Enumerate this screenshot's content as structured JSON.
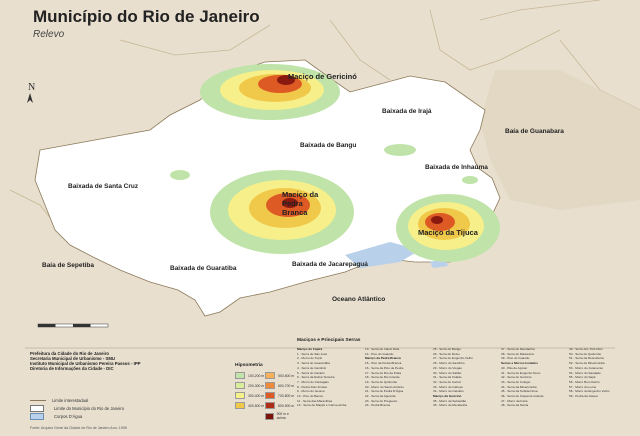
{
  "header": {
    "title": "Município do Rio de Janeiro",
    "subtitle": "Relevo",
    "north_label": "N"
  },
  "map": {
    "colors": {
      "background": "#e8dfcf",
      "land": "#ffffff",
      "water": "#b9d0ea",
      "boundary": "#8c7a5a",
      "low": "#bfe3a8",
      "mid": "#f1c94a",
      "high": "#d24a1c",
      "peak": "#8a1a10"
    },
    "labels": {
      "macico_gericino": "Maciço de Gericinó",
      "baixada_iraja": "Baixada de Irajá",
      "baia_guanabara": "Baía de Guanabara",
      "baixada_bangu": "Baixada de Bangu",
      "baixada_inhauma": "Baixada de Inhaúma",
      "baixada_santa_cruz": "Baixada de Santa Cruz",
      "macico_pedra_branca": "Maciço da Pedra Branca",
      "macico_tijuca": "Maciço da Tijuca",
      "baia_sepetiba": "Baía de Sepetiba",
      "baixada_guaratiba": "Baixada de Guaratiba",
      "baixada_jacarepagua": "Baixada de Jacarepaguá",
      "oceano": "Oceano Atlântico"
    }
  },
  "legend": {
    "institution": [
      "Prefeitura da Cidade do Rio de Janeiro",
      "Secretaria Municipal de Urbanismo - SMU",
      "Instituto Municipal de Urbanismo Pereira Passos - IPP",
      "Diretoria de Informações da Cidade - DIC"
    ],
    "lines": {
      "state_limit": "Limite interestadual",
      "municipal_limit": "Limite do Município do Rio de Janeiro",
      "water": "Corpos D'Água"
    },
    "credit": "Fonte: Arquivo Geral da Cidade do Rio de Janeiro   Ano: 1998",
    "hypsometry_title": "Hipsometria",
    "hypsometry": [
      {
        "label": "100-200 m",
        "color": "#bfe3a8"
      },
      {
        "label": "500-600 m",
        "color": "#f6b15a"
      },
      {
        "label": "200-300 m",
        "color": "#d8ee9a"
      },
      {
        "label": "600-700 m",
        "color": "#ef8a3a"
      },
      {
        "label": "300-400 m",
        "color": "#f6ef8a"
      },
      {
        "label": "700-800 m",
        "color": "#dd5a25"
      },
      {
        "label": "400-500 m",
        "color": "#f1c94a"
      },
      {
        "label": "800-900 m",
        "color": "#b02d17"
      },
      {
        "label": "",
        "color": "#ffffff"
      },
      {
        "label": "900 m e acima",
        "color": "#7a1409"
      }
    ],
    "macicos_title": "Maciços e Principais Serras",
    "macicos_columns": [
      [
        "Maciço do Fapira",
        "1 - Serra de São José",
        "2 - Morro do Tupã",
        "3 - Serra do Guaxindiba",
        "4 - Serra de Cantimã",
        "5 - Serra do Castelo",
        "6 - Serra da Estiva Terceira",
        "7 - Morro do Cantagalo",
        "8 - Pedra Dois Irmãos",
        "9 - Morro do Geomé",
        "10 - Pico do Banco",
        "11 - Serra das Maravilhas",
        "12 - Serra do Mapipi e Carmenónha"
      ],
      [
        "13 - Serra do Inácio Dias",
        "14 - Pico do Guandu",
        "Maciço da Pedra Branca",
        "15 - Pico da Pedra Branca",
        "16 - Serra da Pico da Pedra",
        "17 - Serra do Rio da Prata",
        "18 - Serra de Rio Grande",
        "19 - Serra do Quilombo",
        "20 - Morro do Santo Antônio",
        "21 - Serra de Pedra D'Água",
        "22 - Serra da Aguarda",
        "23 - Serra do Pregueiro",
        "24 - Pedra Branca"
      ],
      [
        "25 - Serra do Bangu",
        "26 - Serra do Ruivo",
        "27 - Serra do Engenho Velho",
        "28 - Morro do Santinho",
        "29 - Morro do Viegas",
        "30 - Morro do Sabão",
        "31 - Serra da Cidade",
        "32 - Serra do Catruz",
        "33 - Morro do Cabuçu",
        "34 - Morro do Calvário",
        "Maciço da Gericinó",
        "35 - Morro da Sebastião",
        "36 - Morro do Mendanha"
      ],
      [
        "37 - Serra do Mendanha",
        "38 - Serra do Madureira",
        "39 - Pico do Guandu",
        "Serras e Morros Isolados",
        "40 - Pão de Açúcar",
        "41 - Serra do Engenho Novo",
        "42 - Serra do Gericinó",
        "43 - Serra do Colégio",
        "44 - Serra da Misericórdia",
        "45 - Serra da Subida Nova",
        "46 - Serra do Capueira Grande",
        "47 - Morro da Faria",
        "48 - Serra da Sarna"
      ],
      [
        "49 - Serra dos Três Rios",
        "50 - Serra do Quilombo",
        "51 - Serra da Descoberta",
        "52 - Serra do Misericórdia",
        "53 - Morro do Juramento",
        "54 - Morro do Saudade",
        "55 - Morro do Sapê",
        "56 - Morro Bom Retiro",
        "57 - Morro do Leme",
        "58 - Morro do Engenho Velho",
        "59 - Pedra da Gávea"
      ]
    ]
  }
}
